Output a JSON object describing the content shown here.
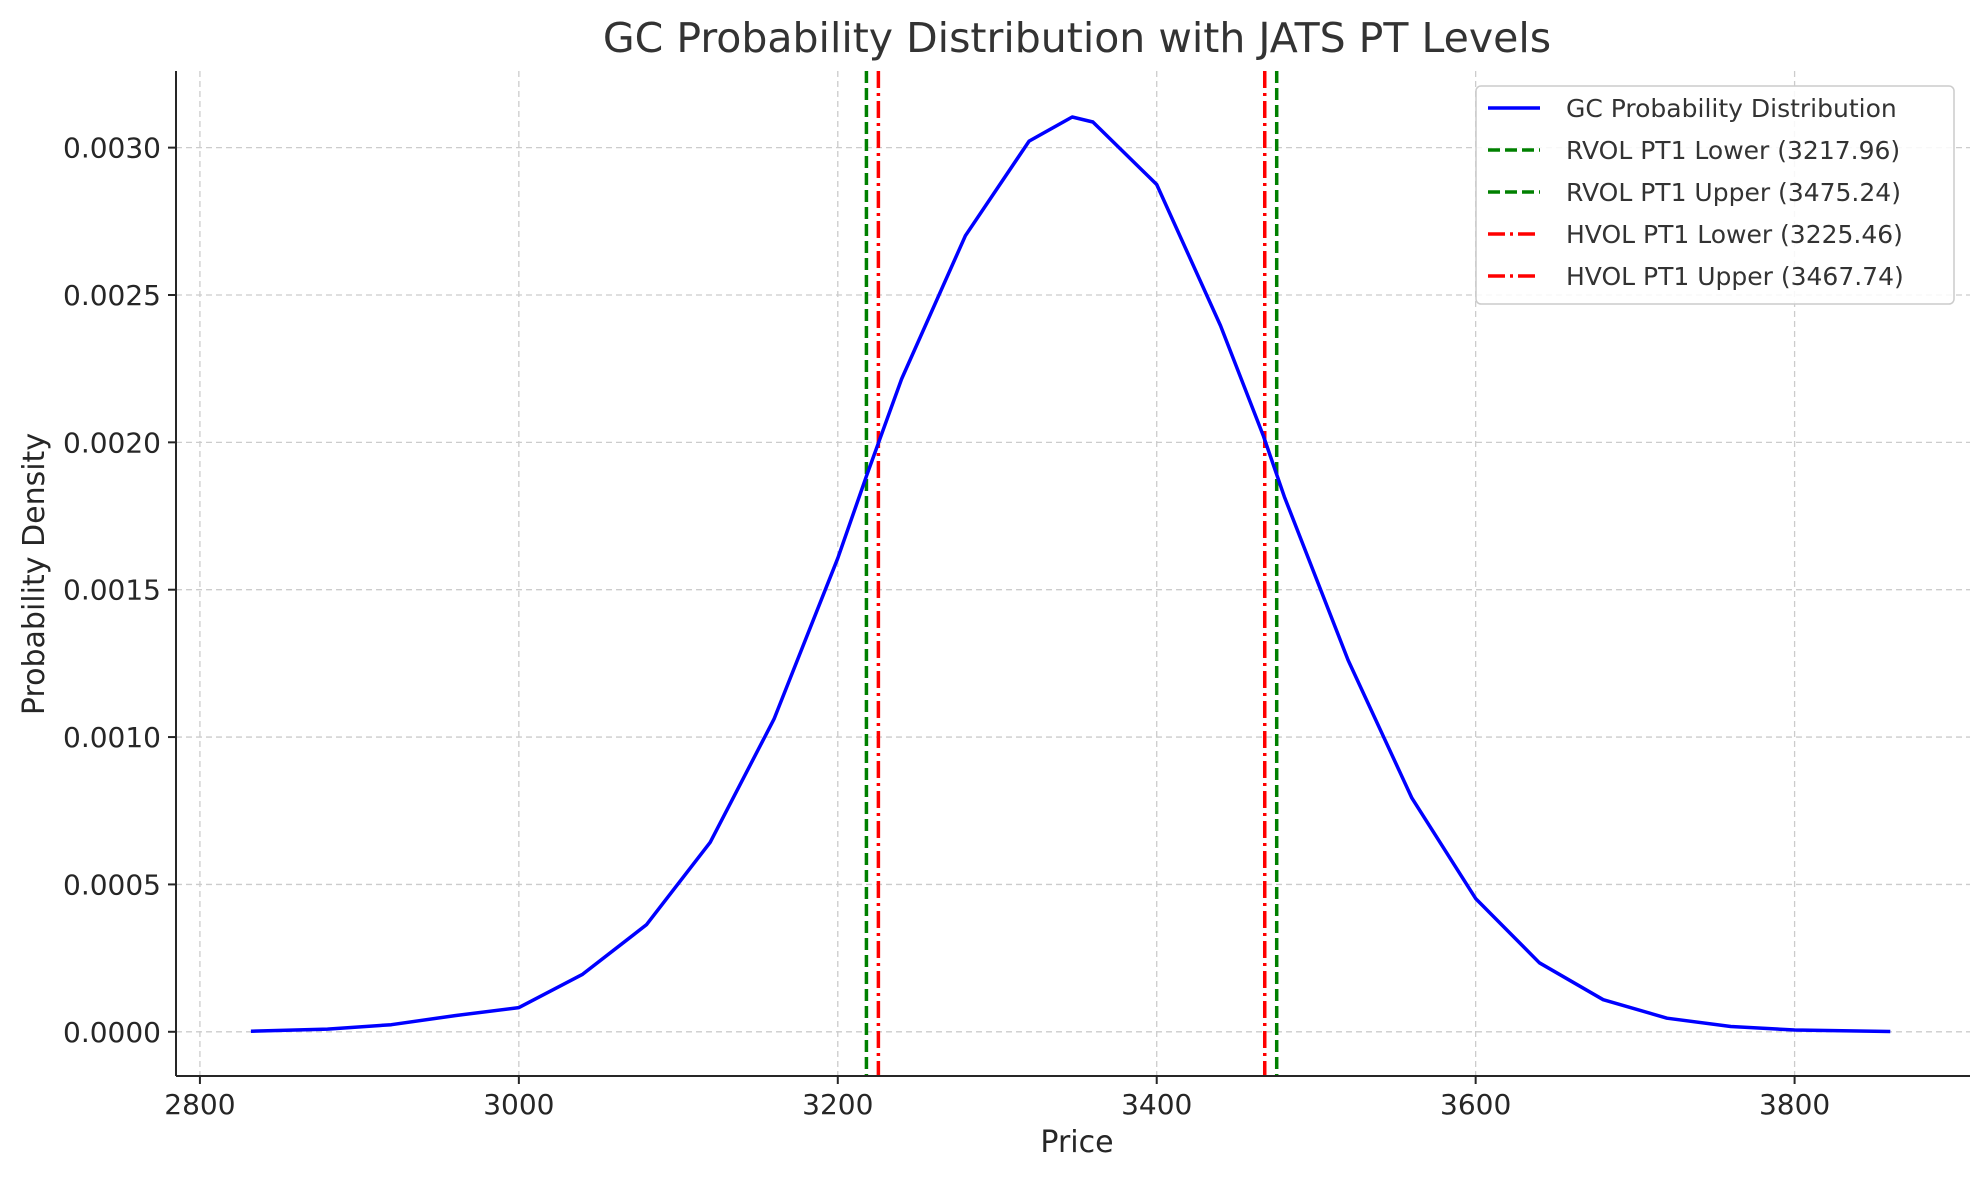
{
  "chart_data": {
    "type": "line",
    "title": "GC Probability Distribution with JATS PT Levels",
    "xlabel": "Price",
    "ylabel": "Probability Density",
    "xlim": [
      2785,
      3910
    ],
    "ylim": [
      -0.00015,
      0.00326
    ],
    "x_ticks": [
      2800,
      3000,
      3200,
      3400,
      3600,
      3800
    ],
    "y_ticks": [
      0.0,
      0.0005,
      0.001,
      0.0015,
      0.002,
      0.0025,
      0.003
    ],
    "x_tick_labels": [
      "2800",
      "3000",
      "3200",
      "3400",
      "3600",
      "3800"
    ],
    "y_tick_labels": [
      "0.0000",
      "0.0005",
      "0.0010",
      "0.0015",
      "0.0020",
      "0.0025",
      "0.0030"
    ],
    "grid": true,
    "legend_position": "top-right",
    "series": [
      {
        "name": "GC Probability Distribution",
        "color": "#0000ff",
        "style": "solid",
        "points": [
          [
            2832,
            2e-06
          ],
          [
            2880,
            9e-06
          ],
          [
            2920,
            2.4e-05
          ],
          [
            2960,
            5.5e-05
          ],
          [
            3000,
            8.2e-05
          ],
          [
            3040,
            0.000195
          ],
          [
            3080,
            0.000363
          ],
          [
            3120,
            0.000643
          ],
          [
            3160,
            0.001061
          ],
          [
            3200,
            0.001607
          ],
          [
            3218,
            0.001886
          ],
          [
            3240,
            0.002215
          ],
          [
            3280,
            0.002701
          ],
          [
            3320,
            0.003022
          ],
          [
            3347,
            0.003104
          ],
          [
            3360,
            0.003087
          ],
          [
            3400,
            0.002875
          ],
          [
            3440,
            0.002396
          ],
          [
            3467,
            0.00202
          ],
          [
            3480,
            0.001816
          ],
          [
            3520,
            0.001261
          ],
          [
            3560,
            0.000793
          ],
          [
            3600,
            0.000452
          ],
          [
            3640,
            0.000234
          ],
          [
            3680,
            0.000109
          ],
          [
            3720,
            4.6e-05
          ],
          [
            3760,
            1.8e-05
          ],
          [
            3800,
            6e-06
          ],
          [
            3860,
            1e-06
          ]
        ]
      }
    ],
    "vlines": [
      {
        "name": "RVOL PT1 Lower (3217.96)",
        "x": 3217.96,
        "color": "#008000",
        "style": "dashed"
      },
      {
        "name": "RVOL PT1 Upper (3475.24)",
        "x": 3475.24,
        "color": "#008000",
        "style": "dashed"
      },
      {
        "name": "HVOL PT1 Lower (3225.46)",
        "x": 3225.46,
        "color": "#ff0000",
        "style": "dashdot"
      },
      {
        "name": "HVOL PT1 Upper (3467.74)",
        "x": 3467.74,
        "color": "#ff0000",
        "style": "dashdot"
      }
    ]
  }
}
